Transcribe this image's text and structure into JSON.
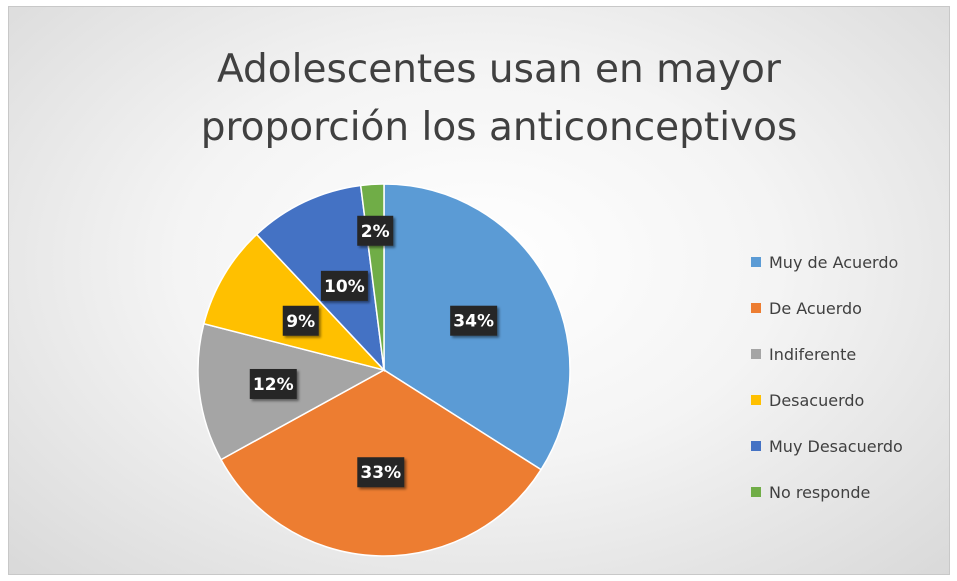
{
  "chart_data": {
    "type": "pie",
    "title": "Adolescentes usan en mayor proporción los anticonceptivos",
    "categories": [
      "Muy de Acuerdo",
      "De Acuerdo",
      "Indiferente",
      "Desacuerdo",
      "Muy Desacuerdo",
      "No responde"
    ],
    "values": [
      34,
      33,
      12,
      9,
      10,
      2
    ],
    "labels": [
      "34%",
      "33%",
      "12%",
      "9%",
      "10%",
      "2%"
    ],
    "colors": [
      "#5b9bd5",
      "#ed7d31",
      "#a5a5a5",
      "#ffc000",
      "#4472c4",
      "#70ad47"
    ],
    "legend_position": "right"
  }
}
